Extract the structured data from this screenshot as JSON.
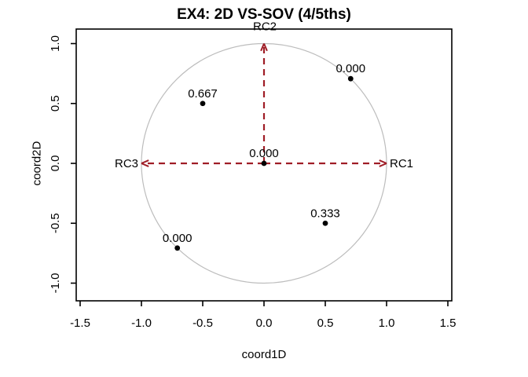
{
  "chart_data": {
    "type": "scatter",
    "title": "EX4: 2D VS-SOV (4/5ths)",
    "xlabel": "coord1D",
    "ylabel": "coord2D",
    "xlim": [
      -1.5,
      1.5
    ],
    "ylim": [
      -1.1,
      1.1
    ],
    "grid": false,
    "legend": false,
    "xtick_values": [
      -1.5,
      -1.0,
      -0.5,
      0.0,
      0.5,
      1.0,
      1.5
    ],
    "xtick_labels": [
      "-1.5",
      "-1.0",
      "-0.5",
      "0.0",
      "0.5",
      "1.0",
      "1.5"
    ],
    "ytick_values": [
      -1.0,
      -0.5,
      0.0,
      0.5,
      1.0
    ],
    "ytick_labels": [
      "-1.0",
      "-0.5",
      "0.0",
      "0.5",
      "1.0"
    ],
    "unit_circle": {
      "cx": 0,
      "cy": 0,
      "r": 1.0
    },
    "points": [
      {
        "x": 0.707,
        "y": 0.707,
        "label": "0.000"
      },
      {
        "x": -0.5,
        "y": 0.5,
        "label": "0.667"
      },
      {
        "x": 0.0,
        "y": 0.0,
        "label": "0.000"
      },
      {
        "x": 0.5,
        "y": -0.5,
        "label": "0.333"
      },
      {
        "x": -0.707,
        "y": -0.707,
        "label": "0.000"
      }
    ],
    "factor_arrows": [
      {
        "label": "RC1",
        "x": 1.0,
        "y": 0.0,
        "label_side": "right"
      },
      {
        "label": "RC2",
        "x": 0.0,
        "y": 1.0,
        "label_side": "top"
      },
      {
        "label": "RC3",
        "x": -1.0,
        "y": 0.0,
        "label_side": "left"
      }
    ],
    "styles": {
      "arrow_color": "#9F1D26",
      "arrow_dash": "dashed",
      "point_color": "#000000",
      "point_label_color": "#000000",
      "circle_color": "#BDBDBD",
      "axis_color": "#000000",
      "background": "#FFFFFF"
    }
  }
}
